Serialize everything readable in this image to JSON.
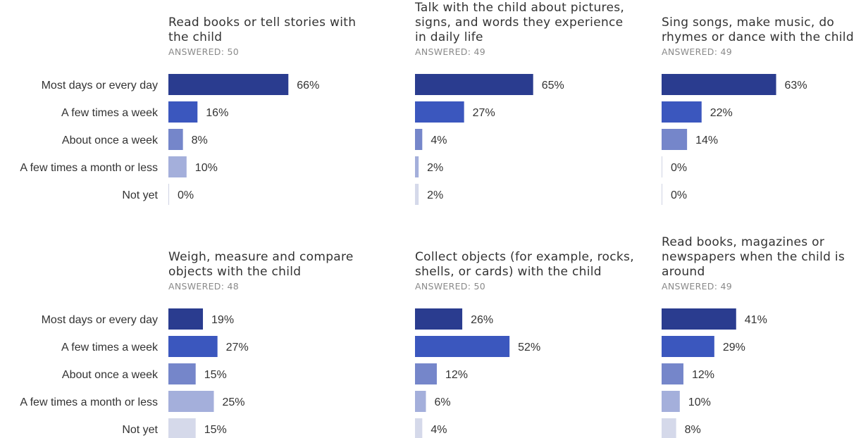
{
  "chart_data": [
    {
      "type": "bar",
      "orientation": "horizontal",
      "title_lines": [
        "Read books or tell stories with",
        "the child"
      ],
      "answered": "ANSWERED: 50",
      "categories": [
        "Most days or every day",
        "A few times a week",
        "About once a week",
        "A few times a month or less",
        "Not yet"
      ],
      "values": [
        66,
        16,
        8,
        10,
        0
      ],
      "labels": [
        "66%",
        "16%",
        "8%",
        "10%",
        "0%"
      ],
      "unit": "%"
    },
    {
      "type": "bar",
      "orientation": "horizontal",
      "title_lines": [
        "Talk with the child about pictures,",
        "signs, and words they experience",
        "in daily life"
      ],
      "answered": "ANSWERED: 49",
      "categories": [
        "Most days or every day",
        "A few times a week",
        "About once a week",
        "A few times a month or less",
        "Not yet"
      ],
      "values": [
        65,
        27,
        4,
        2,
        2
      ],
      "labels": [
        "65%",
        "27%",
        "4%",
        "2%",
        "2%"
      ],
      "unit": "%"
    },
    {
      "type": "bar",
      "orientation": "horizontal",
      "title_lines": [
        "Sing songs, make music, do",
        "rhymes or dance with the child"
      ],
      "answered": "ANSWERED: 49",
      "categories": [
        "Most days or every day",
        "A few times a week",
        "About once a week",
        "A few times a month or less",
        "Not yet"
      ],
      "values": [
        63,
        22,
        14,
        0,
        0
      ],
      "labels": [
        "63%",
        "22%",
        "14%",
        "0%",
        "0%"
      ],
      "unit": "%"
    },
    {
      "type": "bar",
      "orientation": "horizontal",
      "title_lines": [
        "Weigh, measure and compare",
        "objects with the child"
      ],
      "answered": "ANSWERED: 48",
      "categories": [
        "Most days or every day",
        "A few times a week",
        "About once a week",
        "A few times a month or less",
        "Not yet"
      ],
      "values": [
        19,
        27,
        15,
        25,
        15
      ],
      "labels": [
        "19%",
        "27%",
        "15%",
        "25%",
        "15%"
      ],
      "unit": "%"
    },
    {
      "type": "bar",
      "orientation": "horizontal",
      "title_lines": [
        "Collect objects (for example, rocks,",
        "shells, or cards) with the child"
      ],
      "answered": "ANSWERED: 50",
      "categories": [
        "Most days or every day",
        "A few times a week",
        "About once a week",
        "A few times a month or less",
        "Not yet"
      ],
      "values": [
        26,
        52,
        12,
        6,
        4
      ],
      "labels": [
        "26%",
        "52%",
        "12%",
        "6%",
        "4%"
      ],
      "unit": "%"
    },
    {
      "type": "bar",
      "orientation": "horizontal",
      "title_lines": [
        "Read books, magazines or",
        "newspapers when the child is",
        "around"
      ],
      "answered": "ANSWERED: 49",
      "categories": [
        "Most days or every day",
        "A few times a week",
        "About once a week",
        "A few times a month or less",
        "Not yet"
      ],
      "values": [
        41,
        29,
        12,
        10,
        8
      ],
      "labels": [
        "41%",
        "29%",
        "12%",
        "10%",
        "8%"
      ],
      "unit": "%"
    }
  ],
  "colors": [
    "#2a3c8f",
    "#3b57be",
    "#7586ca",
    "#a4afdb",
    "#d5d9ea"
  ],
  "zero_line_color": "#cfd3e3"
}
